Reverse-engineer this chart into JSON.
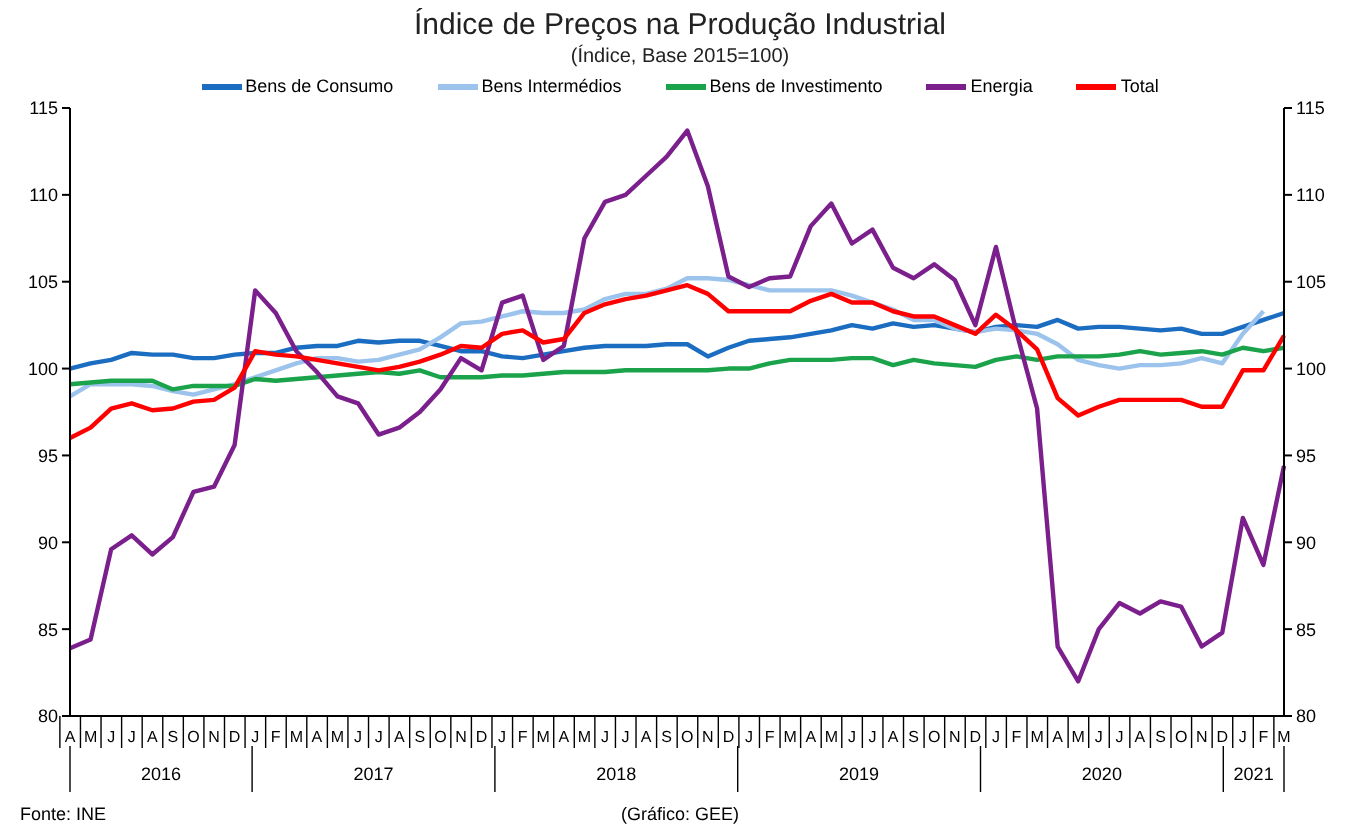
{
  "chart_data": {
    "type": "line",
    "title": "Índice de Preços na Produção Industrial",
    "subtitle": "(Índice, Base 2015=100)",
    "categories": [
      "A",
      "M",
      "J",
      "J",
      "A",
      "S",
      "O",
      "N",
      "D",
      "J",
      "F",
      "M",
      "A",
      "M",
      "J",
      "J",
      "A",
      "S",
      "O",
      "N",
      "D",
      "J",
      "F",
      "M",
      "A",
      "M",
      "J",
      "J",
      "A",
      "S",
      "O",
      "N",
      "D",
      "J",
      "F",
      "M",
      "A",
      "M",
      "J",
      "J",
      "A",
      "S",
      "O",
      "N",
      "D",
      "J",
      "F",
      "M",
      "A",
      "M",
      "J",
      "J",
      "A",
      "S",
      "O",
      "N",
      "D",
      "J",
      "F",
      "M"
    ],
    "series": [
      {
        "name": "Bens de Consumo",
        "color": "#1a6dc0",
        "values": [
          100.0,
          100.3,
          100.5,
          100.9,
          100.8,
          100.8,
          100.6,
          100.6,
          100.8,
          100.9,
          100.9,
          101.2,
          101.3,
          101.3,
          101.6,
          101.5,
          101.6,
          101.6,
          101.3,
          101.0,
          101.0,
          100.7,
          100.6,
          100.8,
          101.0,
          101.2,
          101.3,
          101.3,
          101.3,
          101.4,
          101.4,
          100.7,
          101.2,
          101.6,
          101.7,
          101.8,
          102.0,
          102.2,
          102.5,
          102.3,
          102.6,
          102.4,
          102.5,
          102.3,
          102.1,
          102.4,
          102.5,
          102.4,
          102.8,
          102.3,
          102.4,
          102.4,
          102.3,
          102.2,
          102.3,
          102.0,
          102.0,
          102.4,
          102.8,
          103.2
        ]
      },
      {
        "name": "Bens Intermédios",
        "color": "#9cc3ec",
        "values": [
          98.4,
          99.1,
          99.1,
          99.1,
          99.0,
          98.7,
          98.5,
          98.8,
          99.1,
          99.5,
          99.9,
          100.3,
          100.6,
          100.6,
          100.4,
          100.5,
          100.8,
          101.1,
          101.8,
          102.6,
          102.7,
          103.0,
          103.3,
          103.2,
          103.2,
          103.4,
          104.0,
          104.3,
          104.3,
          104.6,
          105.2,
          105.2,
          105.1,
          104.8,
          104.5,
          104.5,
          104.5,
          104.5,
          104.2,
          103.8,
          103.4,
          102.8,
          102.8,
          102.3,
          102.1,
          102.3,
          102.2,
          102.0,
          101.4,
          100.5,
          100.2,
          100.0,
          100.2,
          100.2,
          100.3,
          100.6,
          100.3,
          102.0,
          103.3,
          null
        ]
      },
      {
        "name": "Bens de Investimento",
        "color": "#1aa34a",
        "values": [
          99.1,
          99.2,
          99.3,
          99.3,
          99.3,
          98.8,
          99.0,
          99.0,
          99.0,
          99.4,
          99.3,
          99.4,
          99.5,
          99.6,
          99.7,
          99.8,
          99.7,
          99.9,
          99.5,
          99.5,
          99.5,
          99.6,
          99.6,
          99.7,
          99.8,
          99.8,
          99.8,
          99.9,
          99.9,
          99.9,
          99.9,
          99.9,
          100.0,
          100.0,
          100.3,
          100.5,
          100.5,
          100.5,
          100.6,
          100.6,
          100.2,
          100.5,
          100.3,
          100.2,
          100.1,
          100.5,
          100.7,
          100.5,
          100.7,
          100.7,
          100.7,
          100.8,
          101.0,
          100.8,
          100.9,
          101.0,
          100.8,
          101.2,
          101.0,
          101.2
        ]
      },
      {
        "name": "Energia",
        "color": "#7b1f8c",
        "values": [
          83.9,
          84.4,
          89.6,
          90.4,
          89.3,
          90.3,
          92.9,
          93.2,
          95.6,
          104.5,
          103.2,
          101.0,
          99.8,
          98.4,
          98.0,
          96.2,
          96.6,
          97.5,
          98.8,
          100.6,
          99.9,
          103.8,
          104.2,
          100.5,
          101.3,
          107.5,
          109.6,
          110.0,
          111.1,
          112.2,
          113.7,
          110.5,
          105.3,
          104.7,
          105.2,
          105.3,
          108.2,
          109.5,
          107.2,
          108.0,
          105.8,
          105.2,
          106.0,
          105.1,
          102.5,
          107.0,
          102.1,
          97.7,
          84.0,
          82.0,
          85.0,
          86.5,
          85.9,
          86.6,
          86.3,
          84.0,
          84.8,
          91.4,
          88.7,
          94.4
        ]
      },
      {
        "name": "Total",
        "color": "#ff0000",
        "values": [
          96.0,
          96.6,
          97.7,
          98.0,
          97.6,
          97.7,
          98.1,
          98.2,
          98.9,
          101.0,
          100.8,
          100.7,
          100.5,
          100.3,
          100.1,
          99.9,
          100.1,
          100.4,
          100.8,
          101.3,
          101.2,
          102.0,
          102.2,
          101.5,
          101.7,
          103.2,
          103.7,
          104.0,
          104.2,
          104.5,
          104.8,
          104.3,
          103.3,
          103.3,
          103.3,
          103.3,
          103.9,
          104.3,
          103.8,
          103.8,
          103.3,
          103.0,
          103.0,
          102.5,
          102.0,
          103.1,
          102.2,
          101.1,
          98.3,
          97.3,
          97.8,
          98.2,
          98.2,
          98.2,
          98.2,
          97.8,
          97.8,
          99.9,
          99.9,
          101.9
        ]
      }
    ],
    "ylim": [
      80,
      115
    ],
    "yticks": [
      80,
      85,
      90,
      95,
      100,
      105,
      110,
      115
    ],
    "y2lim": [
      80,
      115
    ],
    "y2ticks": [
      80,
      85,
      90,
      95,
      100,
      105,
      110,
      115
    ],
    "annotations": [
      "2016",
      "2017",
      "2018",
      "2019",
      "2020",
      "2021",
      "Fonte: INE",
      "(Gráfico: GEE)"
    ],
    "legend": "top",
    "marker": "none",
    "line_style": "solid"
  }
}
